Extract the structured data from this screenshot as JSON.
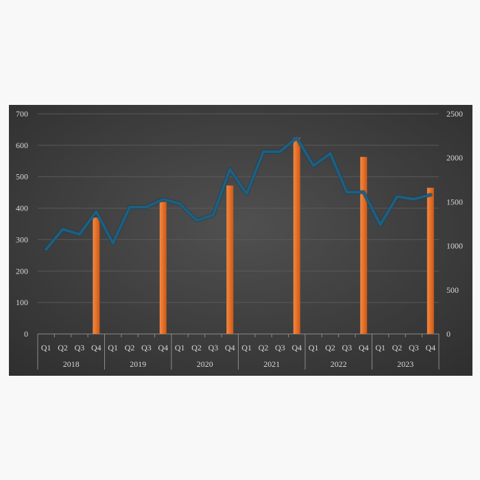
{
  "chart_data": {
    "type": "bar+line",
    "title": "",
    "xlabel": "",
    "ylabel": "",
    "y2label": "",
    "years": [
      "2018",
      "2019",
      "2020",
      "2021",
      "2022",
      "2023"
    ],
    "quarters": [
      "Q1",
      "Q2",
      "Q3",
      "Q4",
      "Q1",
      "Q2",
      "Q3",
      "Q4",
      "Q1",
      "Q2",
      "Q3",
      "Q4",
      "Q1",
      "Q2",
      "Q3",
      "Q4",
      "Q1",
      "Q2",
      "Q3",
      "Q4",
      "Q1",
      "Q2",
      "Q3",
      "Q4"
    ],
    "categories": [
      "2018 Q1",
      "2018 Q2",
      "2018 Q3",
      "2018 Q4",
      "2019 Q1",
      "2019 Q2",
      "2019 Q3",
      "2019 Q4",
      "2020 Q1",
      "2020 Q2",
      "2020 Q3",
      "2020 Q4",
      "2021 Q1",
      "2021 Q2",
      "2021 Q3",
      "2021 Q4",
      "2022 Q1",
      "2022 Q2",
      "2022 Q3",
      "2022 Q4",
      "2023 Q1",
      "2023 Q2",
      "2023 Q3",
      "2023 Q4"
    ],
    "series": [
      {
        "type": "bar",
        "axis": "left",
        "color": "#ed7d31",
        "values": [
          null,
          null,
          null,
          370,
          null,
          null,
          null,
          420,
          null,
          null,
          null,
          472,
          null,
          null,
          null,
          625,
          null,
          null,
          null,
          563,
          null,
          null,
          null,
          465
        ]
      },
      {
        "type": "line",
        "axis": "right",
        "color": "#1f5f80",
        "values": [
          960,
          1190,
          1130,
          1390,
          1030,
          1440,
          1440,
          1530,
          1480,
          1290,
          1350,
          1870,
          1590,
          2070,
          2070,
          2230,
          1910,
          2050,
          1610,
          1610,
          1240,
          1560,
          1530,
          1580
        ]
      }
    ],
    "ylim": [
      0,
      700
    ],
    "y2lim": [
      0,
      2500
    ],
    "y_ticks": [
      "0",
      "100",
      "200",
      "300",
      "400",
      "500",
      "600",
      "700"
    ],
    "y2_ticks": [
      "0",
      "500",
      "1000",
      "1500",
      "2000",
      "2500"
    ],
    "grid": true,
    "legend": "none"
  },
  "colors": {
    "plot_background": "#444444",
    "gridline": "#5a5a5a",
    "text": "#d9d9d9",
    "bar": "#ed7d31",
    "line": "#1f5f80"
  }
}
